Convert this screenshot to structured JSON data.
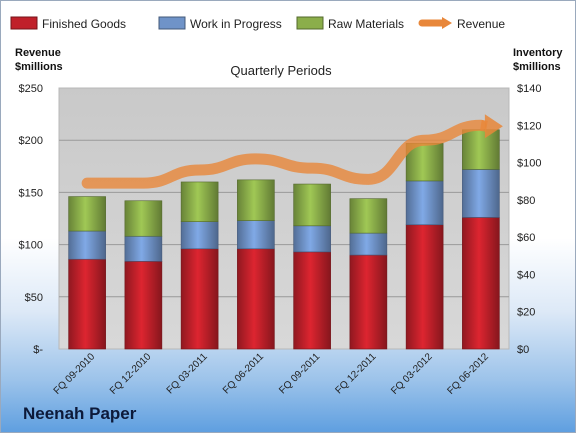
{
  "company": "Neenah Paper",
  "chart_data": {
    "type": "bar",
    "subtype": "stacked-bar-with-line",
    "title": "Quarterly Periods",
    "left_axis_label": [
      "Revenue",
      "$millions"
    ],
    "right_axis_label": [
      "Inventory",
      "$millions"
    ],
    "left_ylim": [
      0,
      250
    ],
    "right_ylim": [
      0,
      140
    ],
    "left_ticks": [
      "$-",
      "$50",
      "$100",
      "$150",
      "$200",
      "$250"
    ],
    "right_ticks": [
      "$0",
      "$20",
      "$40",
      "$60",
      "$80",
      "$100",
      "$120",
      "$140"
    ],
    "categories": [
      "FQ 09-2010",
      "FQ 12-2010",
      "FQ 03-2011",
      "FQ 06-2011",
      "FQ 09-2011",
      "FQ 12-2011",
      "FQ 03-2012",
      "FQ 06-2012"
    ],
    "series": [
      {
        "name": "Finished Goods",
        "axis": "left",
        "color": "#c0202a",
        "values": [
          86,
          84,
          96,
          96,
          93,
          90,
          119,
          126
        ]
      },
      {
        "name": "Work in Progress",
        "axis": "left",
        "color": "#6f93c8",
        "values": [
          27,
          24,
          26,
          27,
          25,
          21,
          42,
          46
        ]
      },
      {
        "name": "Raw Materials",
        "axis": "left",
        "color": "#8bae4a",
        "values": [
          33,
          34,
          38,
          39,
          40,
          33,
          36,
          38
        ]
      },
      {
        "name": "Revenue",
        "axis": "right",
        "type": "line",
        "color": "#e8873a",
        "values": [
          89,
          89,
          96,
          102,
          97,
          91,
          112,
          120
        ]
      }
    ],
    "grid": true,
    "legend": "top"
  }
}
